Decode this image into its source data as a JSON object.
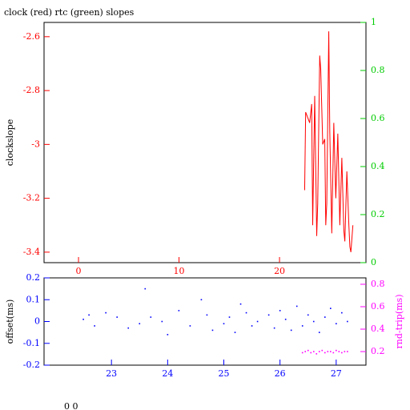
{
  "chart_data": [
    {
      "type": "line",
      "title": "clock (red) rtc (green) slopes",
      "y_label": "clockslope",
      "xlim": [
        -3.43,
        28.6
      ],
      "xticks": [
        0,
        10,
        20
      ],
      "x_color": "#ff0000",
      "ylim": [
        -3.439,
        -2.547
      ],
      "yticks": [
        -2.6,
        -2.8,
        -3,
        -3.2,
        -3.4
      ],
      "y_color": "#ff0000",
      "y2lim": [
        0,
        1
      ],
      "y2ticks": [
        0,
        0.2,
        0.4,
        0.6,
        0.8,
        1
      ],
      "y2_color": "#00cc00",
      "series": [
        {
          "color": "#ff0000",
          "x": [
            22.5,
            22.6,
            22.8,
            23.0,
            23.2,
            23.3,
            23.5,
            23.7,
            23.8,
            24.0,
            24.1,
            24.3,
            24.5,
            24.6,
            24.7,
            24.9,
            25.0,
            25.2,
            25.4,
            25.6,
            25.8,
            26.0,
            26.2,
            26.4,
            26.5,
            26.7,
            26.9,
            27.0,
            27.1,
            27.3
          ],
          "values": [
            -3.17,
            -2.88,
            -2.9,
            -2.92,
            -2.85,
            -3.3,
            -2.82,
            -3.34,
            -3.22,
            -2.67,
            -2.72,
            -3.0,
            -2.98,
            -3.3,
            -3.22,
            -2.58,
            -2.95,
            -3.33,
            -2.92,
            -3.2,
            -2.96,
            -3.3,
            -3.05,
            -3.32,
            -3.36,
            -3.1,
            -3.3,
            -3.38,
            -3.4,
            -3.3
          ]
        }
      ]
    },
    {
      "type": "scatter",
      "y_label": "offset(ms)",
      "y2_label": "rnd-trip(ms)",
      "xlim": [
        21.8,
        27.53
      ],
      "xticks": [
        23,
        24,
        25,
        26,
        27
      ],
      "x_color": "#0000ff",
      "ylim": [
        -0.2,
        0.2
      ],
      "yticks": [
        0.2,
        0.1,
        0,
        -0.1,
        -0.2
      ],
      "y_color": "#0000ff",
      "y2lim": [
        0.079,
        0.857
      ],
      "y2ticks": [
        0.2,
        0.4,
        0.6,
        0.8
      ],
      "y2_color": "#ff00ff",
      "series": [
        {
          "color": "#0000ff",
          "x": [
            22.5,
            22.6,
            22.7,
            22.9,
            23.1,
            23.3,
            23.5,
            23.6,
            23.7,
            23.9,
            24.0,
            24.2,
            24.4,
            24.6,
            24.7,
            24.8,
            25.0,
            25.1,
            25.2,
            25.3,
            25.4,
            25.5,
            25.6,
            25.8,
            25.9,
            26.0,
            26.1,
            26.2,
            26.3,
            26.4,
            26.5,
            26.6,
            26.7,
            26.8,
            26.9,
            27.0,
            27.1,
            27.2
          ],
          "values": [
            0.01,
            0.03,
            -0.02,
            0.04,
            0.02,
            -0.03,
            -0.01,
            0.15,
            0.02,
            0.0,
            -0.06,
            0.05,
            -0.02,
            0.1,
            0.03,
            -0.04,
            -0.01,
            0.02,
            -0.05,
            0.08,
            0.04,
            -0.02,
            0.0,
            0.03,
            -0.03,
            0.05,
            0.01,
            -0.04,
            0.07,
            -0.02,
            0.03,
            0.0,
            -0.05,
            0.02,
            0.06,
            -0.01,
            0.04,
            0.0
          ]
        },
        {
          "color": "#ff00ff",
          "axis": "y2",
          "x": [
            26.4,
            26.45,
            26.5,
            26.55,
            26.6,
            26.65,
            26.7,
            26.75,
            26.8,
            26.85,
            26.9,
            26.95,
            27.0,
            27.05,
            27.1,
            27.15,
            27.2
          ],
          "values": [
            0.19,
            0.2,
            0.21,
            0.19,
            0.2,
            0.18,
            0.2,
            0.21,
            0.19,
            0.2,
            0.2,
            0.19,
            0.21,
            0.2,
            0.19,
            0.2,
            0.2
          ]
        }
      ]
    }
  ],
  "footer": "0 0"
}
